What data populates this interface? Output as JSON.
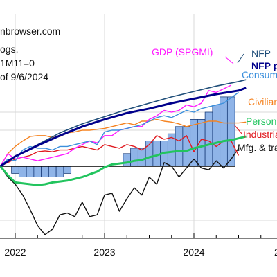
{
  "chart_data": {
    "type": "line",
    "source_note": "nbrowser.com",
    "note_lines": [
      "ogs,",
      "1M11=0",
      "of 9/6/2024"
    ],
    "x_ticks": [
      "2022",
      "2023",
      "2024",
      "2"
    ],
    "xlim": [
      "2021-08",
      "2025-03"
    ],
    "ylim": [
      -0.12,
      0.12
    ],
    "zero_line": 0,
    "bars": {
      "name": "",
      "color": "#8fb4e8",
      "x": [
        "2021-11",
        "2021-12",
        "2022-01",
        "2022-02",
        "2022-03",
        "2022-04",
        "2022-05",
        "2022-06",
        "2022-07",
        "2022-08",
        "2022-09",
        "2022-10",
        "2022-11",
        "2022-12",
        "2023-01",
        "2023-02",
        "2023-03",
        "2023-04",
        "2023-05",
        "2023-06",
        "2023-07",
        "2023-08",
        "2023-09",
        "2023-10",
        "2023-11",
        "2023-12",
        "2024-01",
        "2024-02",
        "2024-03",
        "2024-04",
        "2024-05",
        "2024-06"
      ],
      "values": [
        0.0,
        0.0,
        -0.008,
        -0.012,
        -0.012,
        -0.012,
        -0.012,
        -0.012,
        -0.012,
        -0.008,
        0.0,
        0.0,
        0.0,
        0.0,
        0.0,
        0.0,
        0.0,
        0.014,
        0.02,
        0.02,
        0.028,
        0.028,
        0.028,
        0.036,
        0.044,
        0.044,
        0.052,
        0.052,
        0.06,
        0.068,
        0.077,
        0.077
      ]
    },
    "series": [
      {
        "name": "NFP",
        "color": "#1f4e79",
        "width": 1.6,
        "x": [
          "2021-11",
          "2022-01",
          "2022-04",
          "2022-07",
          "2022-10",
          "2023-01",
          "2023-04",
          "2023-07",
          "2023-10",
          "2024-01",
          "2024-04",
          "2024-07",
          "2024-08"
        ],
        "values": [
          0.0,
          0.011,
          0.024,
          0.037,
          0.047,
          0.055,
          0.063,
          0.07,
          0.077,
          0.083,
          0.089,
          0.094,
          0.096
        ]
      },
      {
        "name": "NFP p",
        "color": "#00008b",
        "width": 3,
        "x": [
          "2021-11",
          "2022-01",
          "2022-04",
          "2022-07",
          "2022-10",
          "2023-01",
          "2023-04",
          "2023-07",
          "2023-10",
          "2024-01",
          "2024-04",
          "2024-07",
          "2024-08"
        ],
        "values": [
          0.0,
          0.011,
          0.023,
          0.034,
          0.044,
          0.052,
          0.059,
          0.064,
          0.07,
          0.075,
          0.08,
          0.084,
          0.087
        ]
      },
      {
        "name": "Consum",
        "color": "#3a8fdc",
        "width": 1.4,
        "x": [
          "2021-11",
          "2021-12",
          "2022-01",
          "2022-02",
          "2022-03",
          "2022-04",
          "2022-05",
          "2022-06",
          "2022-07",
          "2022-08",
          "2022-09",
          "2022-10",
          "2022-11",
          "2022-12",
          "2023-01",
          "2023-02",
          "2023-03",
          "2023-04",
          "2023-05",
          "2023-06",
          "2023-07",
          "2023-08",
          "2023-09",
          "2023-10",
          "2023-11",
          "2023-12",
          "2024-01",
          "2024-02",
          "2024-03",
          "2024-04",
          "2024-05",
          "2024-06",
          "2024-07"
        ],
        "values": [
          0.0,
          0.008,
          0.006,
          0.018,
          0.022,
          0.02,
          0.02,
          0.018,
          0.022,
          0.022,
          0.024,
          0.026,
          0.028,
          0.024,
          0.038,
          0.04,
          0.04,
          0.042,
          0.044,
          0.046,
          0.05,
          0.054,
          0.056,
          0.054,
          0.058,
          0.062,
          0.06,
          0.064,
          0.066,
          0.068,
          0.07,
          0.076,
          0.082
        ]
      },
      {
        "name": "GDP (SPGMI)",
        "color": "#ff19ff",
        "width": 1.4,
        "x": [
          "2021-11",
          "2021-12",
          "2022-01",
          "2022-02",
          "2022-03",
          "2022-04",
          "2022-05",
          "2022-06",
          "2022-07",
          "2022-08",
          "2022-09",
          "2022-10",
          "2022-11",
          "2022-12",
          "2023-01",
          "2023-02",
          "2023-03",
          "2023-04",
          "2023-05",
          "2023-06",
          "2023-07",
          "2023-08",
          "2023-09",
          "2023-10",
          "2023-11",
          "2023-12",
          "2024-01",
          "2024-02",
          "2024-03",
          "2024-04",
          "2024-05",
          "2024-06"
        ],
        "values": [
          0.0,
          0.014,
          0.008,
          0.01,
          0.008,
          0.006,
          0.008,
          0.01,
          0.012,
          0.014,
          0.02,
          0.024,
          0.028,
          0.026,
          0.034,
          0.034,
          0.04,
          0.042,
          0.044,
          0.044,
          0.052,
          0.056,
          0.062,
          0.06,
          0.062,
          0.068,
          0.066,
          0.07,
          0.084,
          0.082,
          0.086,
          0.09
        ]
      },
      {
        "name": "Civilian",
        "color": "#f5821f",
        "width": 1.4,
        "x": [
          "2021-11",
          "2021-12",
          "2022-01",
          "2022-02",
          "2022-03",
          "2022-04",
          "2022-05",
          "2022-06",
          "2022-07",
          "2022-08",
          "2022-09",
          "2022-10",
          "2022-11",
          "2022-12",
          "2023-01",
          "2023-02",
          "2023-03",
          "2023-04",
          "2023-05",
          "2023-06",
          "2023-07",
          "2023-08",
          "2023-09",
          "2023-10",
          "2023-11",
          "2023-12",
          "2024-01",
          "2024-02",
          "2024-03",
          "2024-04",
          "2024-05",
          "2024-06",
          "2024-07",
          "2024-08"
        ],
        "values": [
          0.0,
          0.014,
          0.022,
          0.028,
          0.033,
          0.034,
          0.034,
          0.032,
          0.033,
          0.037,
          0.038,
          0.04,
          0.04,
          0.041,
          0.042,
          0.044,
          0.046,
          0.048,
          0.046,
          0.05,
          0.05,
          0.052,
          0.05,
          0.049,
          0.047,
          0.044,
          0.046,
          0.048,
          0.05,
          0.05,
          0.048,
          0.048,
          0.048,
          0.049
        ]
      },
      {
        "name": "Personal",
        "color": "#22c45e",
        "width": 3,
        "x": [
          "2021-11",
          "2021-12",
          "2022-01",
          "2022-02",
          "2022-03",
          "2022-04",
          "2022-05",
          "2022-06",
          "2022-07",
          "2022-08",
          "2022-09",
          "2022-10",
          "2022-11",
          "2022-12",
          "2023-01",
          "2023-02",
          "2023-03",
          "2023-04",
          "2023-05",
          "2023-06",
          "2023-07",
          "2023-08",
          "2023-09",
          "2023-10",
          "2023-11",
          "2023-12",
          "2024-01",
          "2024-02",
          "2024-03",
          "2024-04",
          "2024-05",
          "2024-06",
          "2024-07",
          "2024-08"
        ],
        "values": [
          0.0,
          -0.01,
          -0.018,
          -0.019,
          -0.02,
          -0.021,
          -0.02,
          -0.018,
          -0.017,
          -0.016,
          -0.014,
          -0.012,
          -0.009,
          -0.006,
          -0.001,
          0.002,
          0.003,
          0.004,
          0.006,
          0.007,
          0.01,
          0.012,
          0.015,
          0.016,
          0.017,
          0.017,
          0.02,
          0.022,
          0.024,
          0.026,
          0.028,
          0.029,
          0.031,
          0.033
        ]
      },
      {
        "name": "Industrial",
        "color": "#e0191f",
        "width": 1.4,
        "x": [
          "2021-11",
          "2021-12",
          "2022-01",
          "2022-02",
          "2022-03",
          "2022-04",
          "2022-05",
          "2022-06",
          "2022-07",
          "2022-08",
          "2022-09",
          "2022-10",
          "2022-11",
          "2022-12",
          "2023-01",
          "2023-02",
          "2023-03",
          "2023-04",
          "2023-05",
          "2023-06",
          "2023-07",
          "2023-08",
          "2023-09",
          "2023-10",
          "2023-11",
          "2023-12",
          "2024-01",
          "2024-02",
          "2024-03",
          "2024-04",
          "2024-05",
          "2024-06",
          "2024-07"
        ],
        "values": [
          0.0,
          0.004,
          0.008,
          0.01,
          0.012,
          0.016,
          0.017,
          0.016,
          0.018,
          0.018,
          0.02,
          0.022,
          0.02,
          0.018,
          0.024,
          0.022,
          0.02,
          0.024,
          0.022,
          0.018,
          0.024,
          0.034,
          0.03,
          0.032,
          0.028,
          0.034,
          0.016,
          0.03,
          0.028,
          0.022,
          0.028,
          0.028,
          0.012
        ]
      },
      {
        "name": "Mfg. & trac",
        "color": "#111111",
        "width": 1.4,
        "x": [
          "2021-11",
          "2021-12",
          "2022-01",
          "2022-02",
          "2022-03",
          "2022-04",
          "2022-05",
          "2022-06",
          "2022-07",
          "2022-08",
          "2022-09",
          "2022-10",
          "2022-11",
          "2022-12",
          "2023-01",
          "2023-02",
          "2023-03",
          "2023-04",
          "2023-05",
          "2023-06",
          "2023-07",
          "2023-08",
          "2023-09",
          "2023-10",
          "2023-11",
          "2023-12",
          "2024-01",
          "2024-02",
          "2024-03",
          "2024-04",
          "2024-05",
          "2024-06",
          "2024-07"
        ],
        "values": [
          0.0,
          -0.012,
          -0.02,
          -0.032,
          -0.048,
          -0.066,
          -0.076,
          -0.07,
          -0.054,
          -0.052,
          -0.056,
          -0.04,
          -0.056,
          -0.054,
          -0.032,
          -0.03,
          -0.05,
          -0.036,
          -0.024,
          -0.032,
          -0.012,
          -0.02,
          0.004,
          0.0,
          -0.012,
          -0.002,
          0.008,
          -0.002,
          -0.004,
          0.006,
          -0.002,
          0.008,
          0.02
        ]
      }
    ],
    "legend_labels": [
      {
        "name": "GDP (SPGMI)",
        "color": "#ff19ff",
        "bold": false
      },
      {
        "name": "NFP",
        "color": "#1f4e79",
        "bold": false
      },
      {
        "name": "NFP p",
        "color": "#00008b",
        "bold": true
      },
      {
        "name": "Consum",
        "color": "#3a8fdc",
        "bold": false
      },
      {
        "name": "Civilian",
        "color": "#f5821f",
        "bold": false
      },
      {
        "name": "Personal",
        "color": "#22c45e",
        "bold": false
      },
      {
        "name": "Industrial",
        "color": "#e0191f",
        "bold": false
      },
      {
        "name": "Mfg. & trac",
        "color": "#111111",
        "bold": false
      }
    ]
  }
}
